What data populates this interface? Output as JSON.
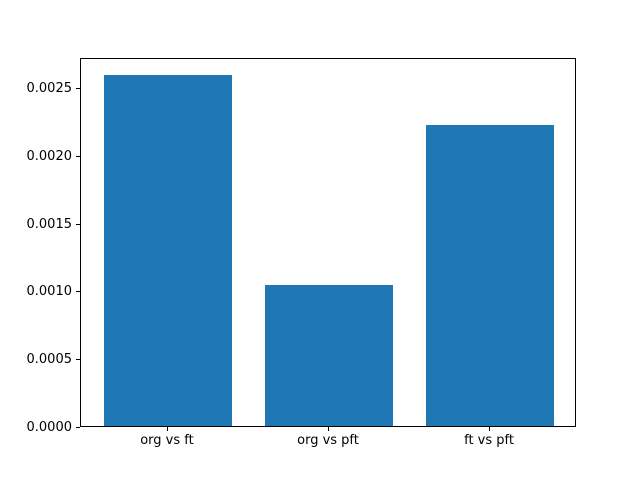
{
  "chart_data": {
    "type": "bar",
    "title": "",
    "xlabel": "",
    "ylabel": "",
    "categories": [
      "org vs ft",
      "org vs pft",
      "ft vs pft"
    ],
    "values": [
      0.00259,
      0.00104,
      0.00222
    ],
    "ylim": [
      0,
      0.00272
    ],
    "xlim": [
      -0.54,
      2.54
    ],
    "bar_width": 0.8,
    "bar_color": "#1f77b4",
    "grid": false,
    "legend": null,
    "background": "#ffffff",
    "yticks": [
      {
        "value": 0.0,
        "label": "0.0000"
      },
      {
        "value": 0.0005,
        "label": "0.0005"
      },
      {
        "value": 0.001,
        "label": "0.0010"
      },
      {
        "value": 0.0015,
        "label": "0.0015"
      },
      {
        "value": 0.002,
        "label": "0.0020"
      },
      {
        "value": 0.0025,
        "label": "0.0025"
      }
    ]
  }
}
